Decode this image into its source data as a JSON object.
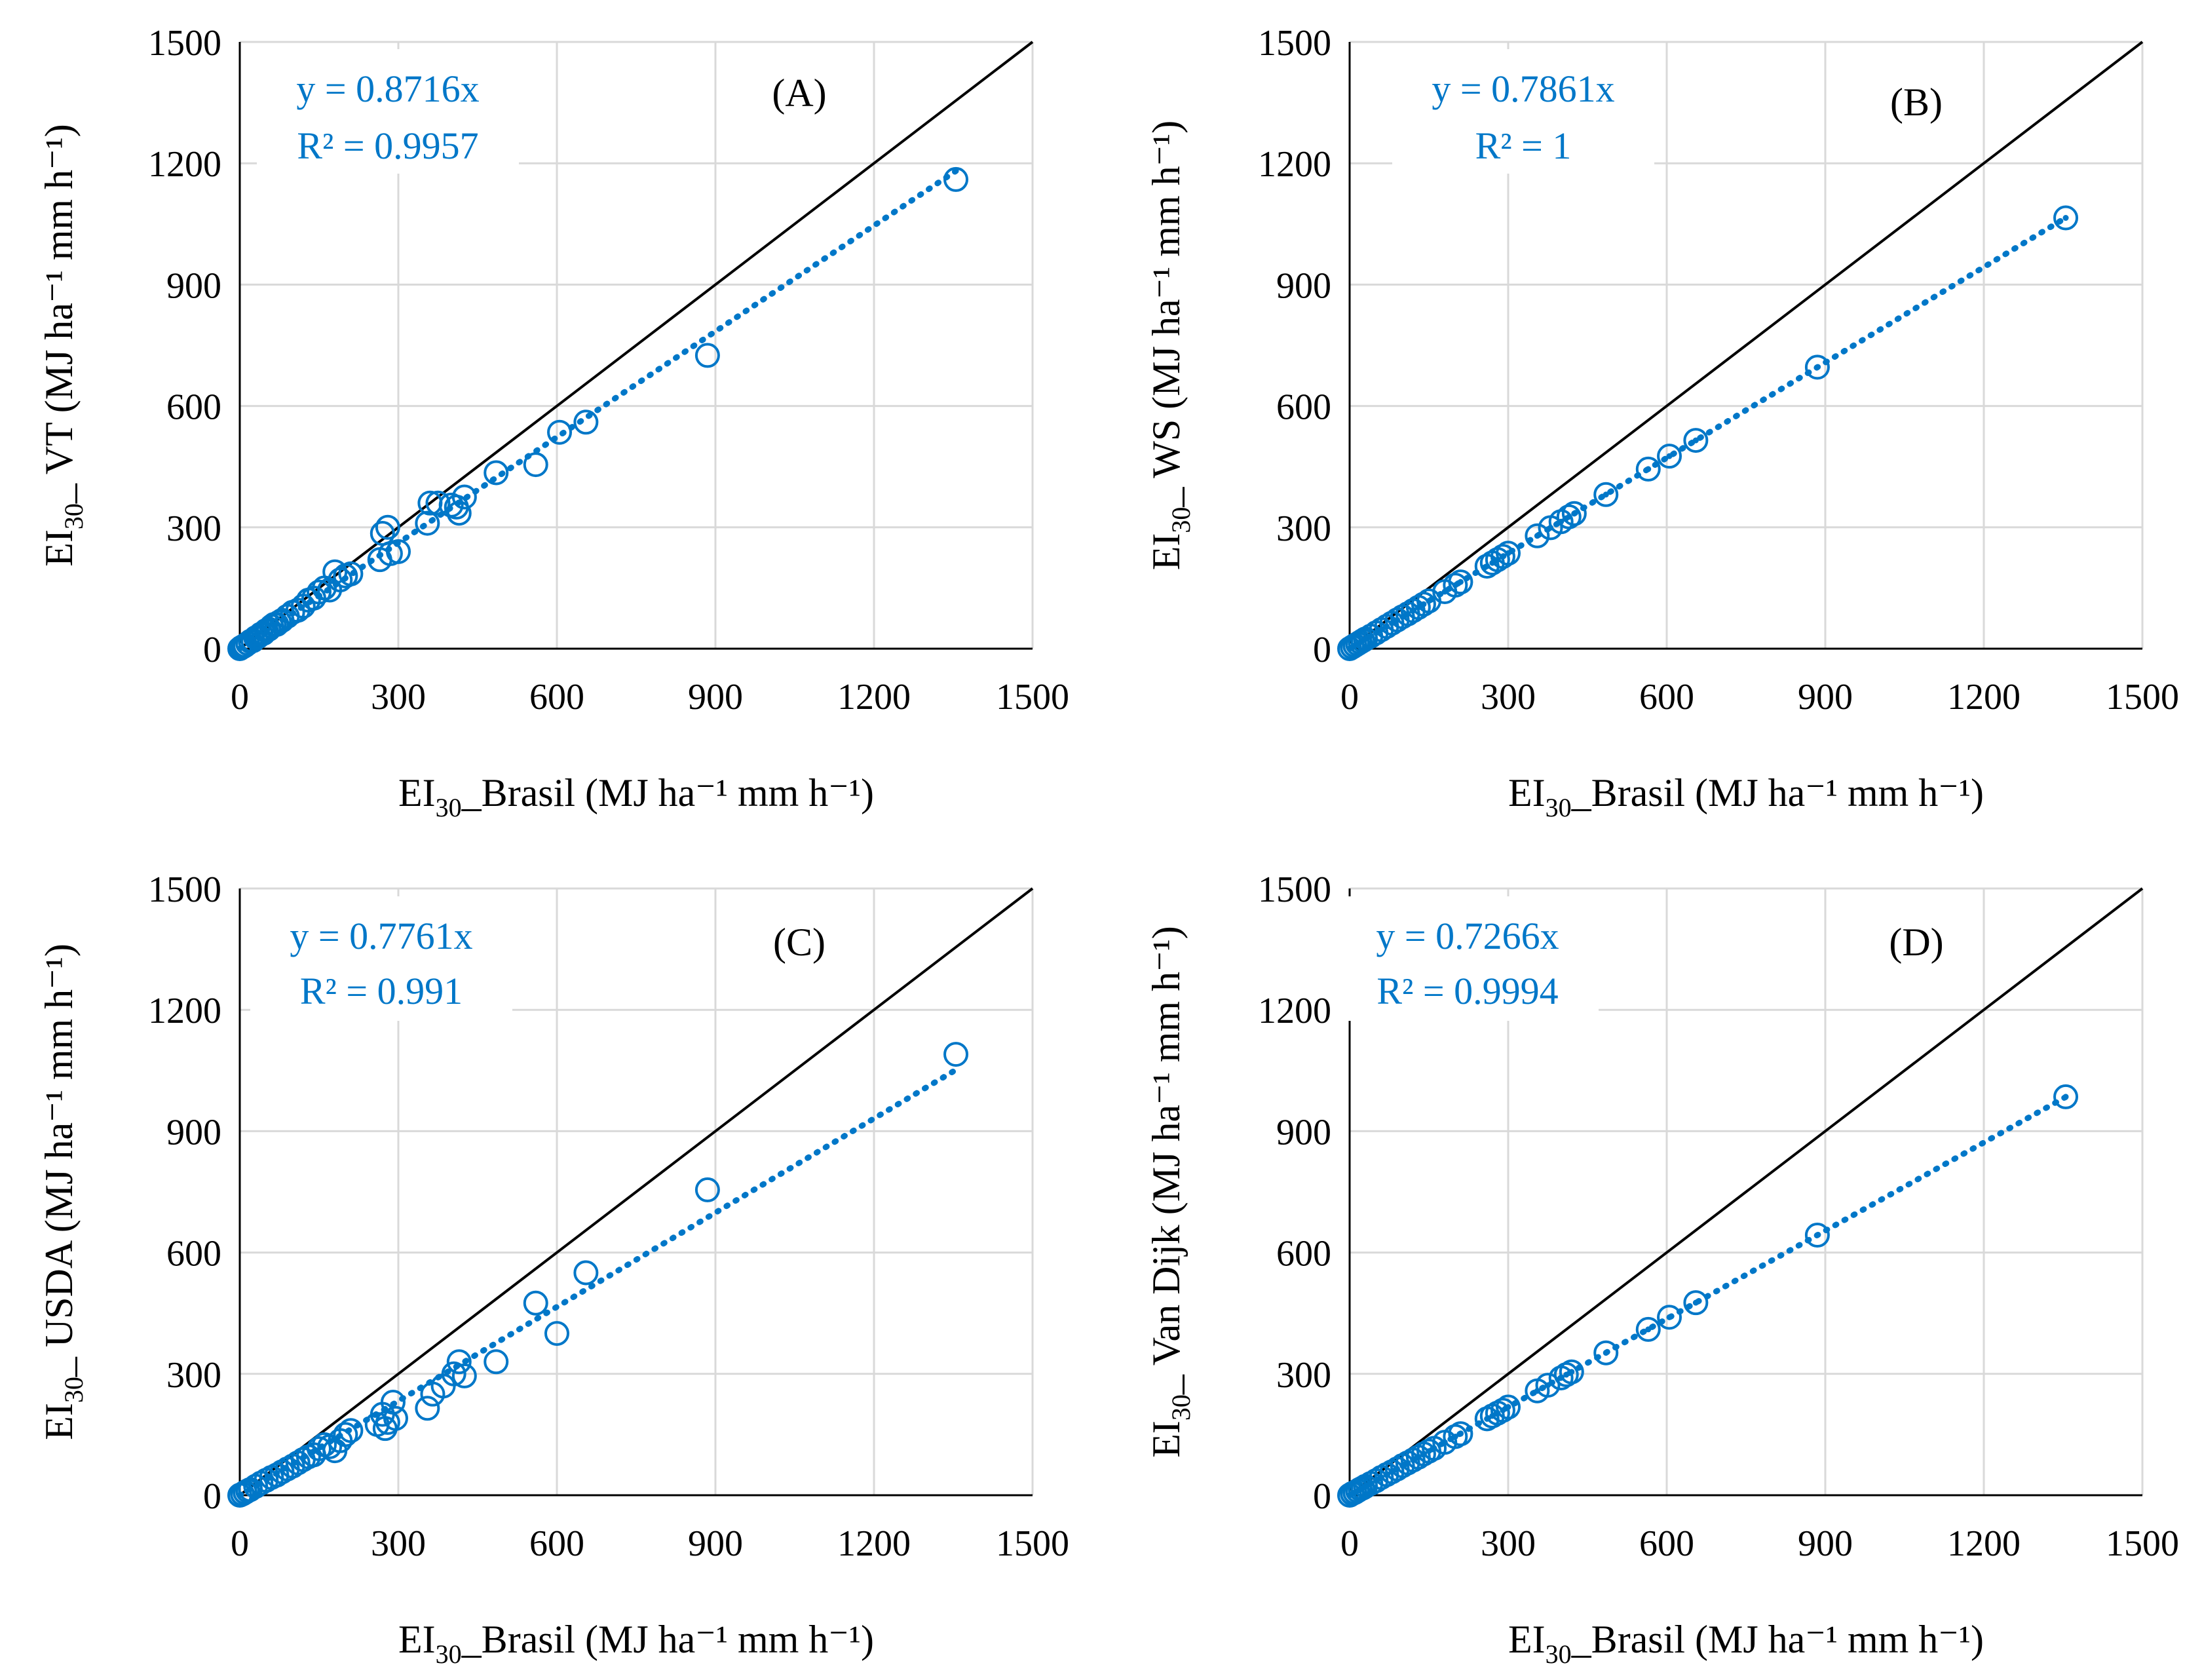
{
  "chart_data": [
    {
      "type": "scatter",
      "panel": "(A)",
      "xlabel": {
        "prefix": "EI",
        "sub": "30",
        "rest": "_Brasil (MJ ha⁻¹ mm h⁻¹)"
      },
      "ylabel": {
        "prefix": "EI",
        "sub": "30",
        "rest": "_ VT (MJ ha⁻¹ mm h⁻¹)"
      },
      "xlim": [
        0,
        1500
      ],
      "ylim": [
        0,
        1500
      ],
      "xticks": [
        0,
        300,
        600,
        900,
        1200,
        1500
      ],
      "yticks": [
        0,
        300,
        600,
        900,
        1200,
        1500
      ],
      "equation": "y = 0.8716x",
      "r2": "R² = 0.9957",
      "slope": 0.8716,
      "marker": "circle",
      "series_color": "#0077c8",
      "points": [
        [
          0,
          0
        ],
        [
          3,
          3
        ],
        [
          6,
          5
        ],
        [
          10,
          8
        ],
        [
          15,
          13
        ],
        [
          20,
          18
        ],
        [
          25,
          20
        ],
        [
          30,
          27
        ],
        [
          35,
          30
        ],
        [
          40,
          36
        ],
        [
          45,
          38
        ],
        [
          50,
          45
        ],
        [
          55,
          48
        ],
        [
          60,
          55
        ],
        [
          65,
          60
        ],
        [
          70,
          60
        ],
        [
          75,
          66
        ],
        [
          80,
          70
        ],
        [
          90,
          80
        ],
        [
          100,
          90
        ],
        [
          110,
          95
        ],
        [
          120,
          105
        ],
        [
          130,
          120
        ],
        [
          140,
          125
        ],
        [
          150,
          140
        ],
        [
          160,
          150
        ],
        [
          170,
          145
        ],
        [
          180,
          190
        ],
        [
          190,
          170
        ],
        [
          200,
          180
        ],
        [
          210,
          185
        ],
        [
          265,
          220
        ],
        [
          270,
          285
        ],
        [
          280,
          300
        ],
        [
          285,
          235
        ],
        [
          300,
          240
        ],
        [
          355,
          310
        ],
        [
          360,
          360
        ],
        [
          375,
          360
        ],
        [
          400,
          355
        ],
        [
          410,
          350
        ],
        [
          415,
          335
        ],
        [
          425,
          375
        ],
        [
          485,
          435
        ],
        [
          560,
          455
        ],
        [
          605,
          535
        ],
        [
          655,
          560
        ],
        [
          885,
          725
        ],
        [
          1355,
          1160
        ]
      ]
    },
    {
      "type": "scatter",
      "panel": "(B)",
      "xlabel": {
        "prefix": "EI",
        "sub": "30",
        "rest": "_Brasil (MJ ha⁻¹ mm h⁻¹)"
      },
      "ylabel": {
        "prefix": "EI",
        "sub": "30",
        "rest": "_ WS (MJ ha⁻¹ mm h⁻¹)"
      },
      "xlim": [
        0,
        1500
      ],
      "ylim": [
        0,
        1500
      ],
      "xticks": [
        0,
        300,
        600,
        900,
        1200,
        1500
      ],
      "yticks": [
        0,
        300,
        600,
        900,
        1200,
        1500
      ],
      "equation": "y = 0.7861x",
      "r2": "R² = 1",
      "slope": 0.7861,
      "marker": "circle-dot",
      "series_color": "#0077c8",
      "points": [
        [
          0,
          0
        ],
        [
          5,
          4
        ],
        [
          10,
          8
        ],
        [
          15,
          12
        ],
        [
          20,
          16
        ],
        [
          25,
          20
        ],
        [
          30,
          24
        ],
        [
          40,
          31
        ],
        [
          50,
          39
        ],
        [
          60,
          47
        ],
        [
          70,
          55
        ],
        [
          80,
          63
        ],
        [
          90,
          71
        ],
        [
          100,
          79
        ],
        [
          110,
          86
        ],
        [
          120,
          94
        ],
        [
          130,
          102
        ],
        [
          140,
          110
        ],
        [
          150,
          118
        ],
        [
          180,
          141
        ],
        [
          200,
          157
        ],
        [
          210,
          165
        ],
        [
          260,
          204
        ],
        [
          270,
          212
        ],
        [
          280,
          220
        ],
        [
          290,
          228
        ],
        [
          300,
          236
        ],
        [
          355,
          279
        ],
        [
          380,
          299
        ],
        [
          400,
          314
        ],
        [
          415,
          326
        ],
        [
          425,
          334
        ],
        [
          485,
          381
        ],
        [
          565,
          444
        ],
        [
          605,
          476
        ],
        [
          655,
          515
        ],
        [
          885,
          696
        ],
        [
          1355,
          1065
        ]
      ]
    },
    {
      "type": "scatter",
      "panel": "(C)",
      "xlabel": {
        "prefix": "EI",
        "sub": "30",
        "rest": "_Brasil (MJ ha⁻¹ mm h⁻¹)"
      },
      "ylabel": {
        "prefix": "EI",
        "sub": "30",
        "rest": "_ USDA (MJ ha⁻¹ mm h⁻¹)"
      },
      "xlim": [
        0,
        1500
      ],
      "ylim": [
        0,
        1500
      ],
      "xticks": [
        0,
        300,
        600,
        900,
        1200,
        1500
      ],
      "yticks": [
        0,
        300,
        600,
        900,
        1200,
        1500
      ],
      "equation": "y = 0.7761x",
      "r2": "R² = 0.991",
      "slope": 0.7761,
      "marker": "circle",
      "series_color": "#0077c8",
      "points": [
        [
          0,
          0
        ],
        [
          5,
          3
        ],
        [
          10,
          7
        ],
        [
          15,
          11
        ],
        [
          20,
          14
        ],
        [
          30,
          22
        ],
        [
          40,
          30
        ],
        [
          50,
          37
        ],
        [
          60,
          44
        ],
        [
          70,
          50
        ],
        [
          80,
          58
        ],
        [
          90,
          65
        ],
        [
          100,
          72
        ],
        [
          110,
          80
        ],
        [
          120,
          88
        ],
        [
          130,
          95
        ],
        [
          140,
          100
        ],
        [
          150,
          115
        ],
        [
          160,
          125
        ],
        [
          170,
          120
        ],
        [
          180,
          110
        ],
        [
          190,
          135
        ],
        [
          200,
          150
        ],
        [
          210,
          160
        ],
        [
          260,
          175
        ],
        [
          270,
          200
        ],
        [
          275,
          165
        ],
        [
          280,
          180
        ],
        [
          290,
          230
        ],
        [
          295,
          190
        ],
        [
          355,
          215
        ],
        [
          365,
          250
        ],
        [
          385,
          270
        ],
        [
          405,
          300
        ],
        [
          415,
          330
        ],
        [
          425,
          295
        ],
        [
          485,
          330
        ],
        [
          560,
          475
        ],
        [
          600,
          400
        ],
        [
          655,
          550
        ],
        [
          885,
          755
        ],
        [
          1355,
          1090
        ]
      ]
    },
    {
      "type": "scatter",
      "panel": "(D)",
      "xlabel": {
        "prefix": "EI",
        "sub": "30",
        "rest": "_Brasil (MJ ha⁻¹ mm h⁻¹)"
      },
      "ylabel": {
        "prefix": "EI",
        "sub": "30",
        "rest": "_ Van Dijk (MJ ha⁻¹ mm h⁻¹)"
      },
      "xlim": [
        0,
        1500
      ],
      "ylim": [
        0,
        1500
      ],
      "xticks": [
        0,
        300,
        600,
        900,
        1200,
        1500
      ],
      "yticks": [
        0,
        300,
        600,
        900,
        1200,
        1500
      ],
      "equation": "y = 0.7266x",
      "r2": "R² = 0.9994",
      "slope": 0.7266,
      "marker": "circle-dot",
      "series_color": "#0077c8",
      "points": [
        [
          0,
          0
        ],
        [
          5,
          4
        ],
        [
          10,
          7
        ],
        [
          15,
          11
        ],
        [
          20,
          15
        ],
        [
          25,
          18
        ],
        [
          30,
          22
        ],
        [
          40,
          29
        ],
        [
          50,
          36
        ],
        [
          60,
          44
        ],
        [
          70,
          51
        ],
        [
          80,
          58
        ],
        [
          90,
          65
        ],
        [
          100,
          73
        ],
        [
          110,
          80
        ],
        [
          120,
          87
        ],
        [
          130,
          94
        ],
        [
          140,
          102
        ],
        [
          150,
          109
        ],
        [
          160,
          116
        ],
        [
          180,
          131
        ],
        [
          200,
          145
        ],
        [
          210,
          152
        ],
        [
          260,
          189
        ],
        [
          270,
          196
        ],
        [
          280,
          203
        ],
        [
          290,
          210
        ],
        [
          300,
          218
        ],
        [
          355,
          258
        ],
        [
          375,
          272
        ],
        [
          400,
          290
        ],
        [
          410,
          298
        ],
        [
          420,
          305
        ],
        [
          485,
          352
        ],
        [
          565,
          410
        ],
        [
          605,
          440
        ],
        [
          655,
          476
        ],
        [
          885,
          643
        ],
        [
          1355,
          985
        ]
      ]
    }
  ]
}
